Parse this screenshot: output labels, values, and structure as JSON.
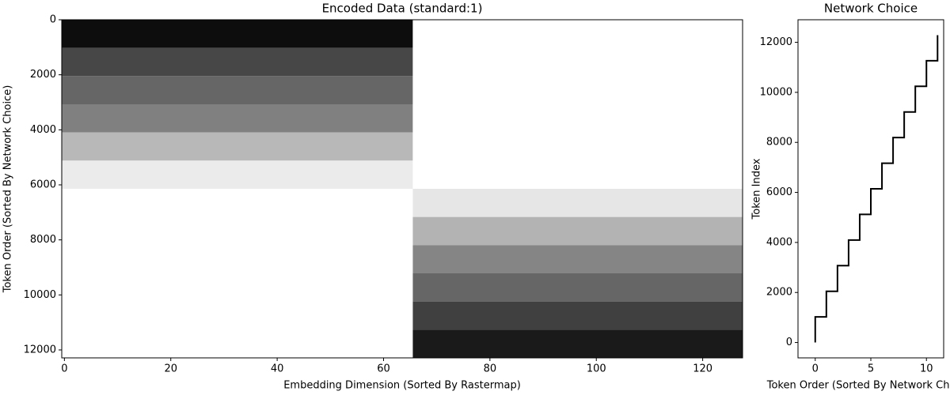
{
  "chart_data": [
    {
      "type": "heatmap",
      "title": "Encoded Data (standard:1)",
      "xlabel": "Embedding Dimension (Sorted By Rastermap)",
      "ylabel": "Token Order (Sorted By Network Choice)",
      "x_edges": [
        -0.5,
        65.5,
        127.5
      ],
      "y_edges": [
        0,
        1024,
        2048,
        3072,
        4096,
        5120,
        6144,
        7168,
        8192,
        9216,
        10240,
        11264,
        12288
      ],
      "values": [
        [
          0.95,
          0
        ],
        [
          0.72,
          0
        ],
        [
          0.6,
          0
        ],
        [
          0.5,
          0
        ],
        [
          0.28,
          0
        ],
        [
          0.08,
          0
        ],
        [
          0,
          0.1
        ],
        [
          0,
          0.3
        ],
        [
          0,
          0.48
        ],
        [
          0,
          0.6
        ],
        [
          0,
          0.75
        ],
        [
          0,
          0.9
        ]
      ],
      "colors": [
        "#ffffff",
        "#000000"
      ],
      "xlim": [
        -0.5,
        127.5
      ],
      "ylim": [
        12288,
        0
      ],
      "xticks": [
        0,
        20,
        40,
        60,
        80,
        100,
        120
      ],
      "yticks": [
        0,
        2000,
        4000,
        6000,
        8000,
        10000,
        12000
      ]
    },
    {
      "type": "line",
      "title": "Network Choice",
      "xlabel": "Token Order (Sorted By Network Choice)",
      "ylabel": "Token Index",
      "x": [
        0,
        0,
        1,
        1,
        2,
        2,
        3,
        3,
        4,
        4,
        5,
        5,
        6,
        6,
        7,
        7,
        8,
        8,
        9,
        9,
        10,
        10,
        11,
        11
      ],
      "values": [
        0,
        1024,
        1024,
        2048,
        2048,
        3072,
        3072,
        4096,
        4096,
        5120,
        5120,
        6144,
        6144,
        7168,
        7168,
        8192,
        8192,
        9216,
        9216,
        10240,
        10240,
        11264,
        11264,
        12288
      ],
      "color": "#000000",
      "xlim": [
        -1.55,
        11.55
      ],
      "ylim": [
        -614,
        12902
      ],
      "xticks": [
        0,
        5,
        10
      ],
      "yticks": [
        0,
        2000,
        4000,
        6000,
        8000,
        10000,
        12000
      ]
    }
  ]
}
